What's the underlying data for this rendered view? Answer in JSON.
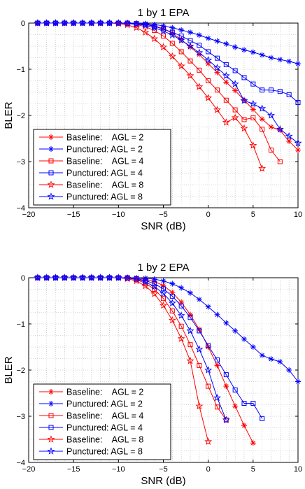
{
  "chart_data": [
    {
      "type": "line",
      "title": "1 by 1 EPA",
      "xlabel": "SNR (dB)",
      "ylabel": "BLER",
      "xlim": [
        -20,
        10
      ],
      "ylim": [
        -4,
        0
      ],
      "xticks": [
        "−20",
        "−15",
        "−10",
        "−5",
        "0",
        "5",
        "10"
      ],
      "yticks": [
        "0",
        "−1",
        "−2",
        "−3",
        "−4"
      ],
      "grid": true,
      "legend_position": "bottom-left",
      "colors": {
        "baseline": "#ff0000",
        "punctured": "#0000ff"
      },
      "series": [
        {
          "name": "Baseline:    AGL = 2",
          "color": "#ff0000",
          "marker": "asterisk",
          "x": [
            -19,
            -18,
            -17,
            -16,
            -15,
            -14,
            -13,
            -12,
            -11,
            -10,
            -9,
            -8,
            -7,
            -6,
            -5,
            -4,
            -3,
            -2,
            -1,
            0,
            1,
            2,
            3,
            4,
            5,
            6,
            7,
            8,
            9,
            10
          ],
          "y": [
            0,
            0,
            0,
            0,
            0,
            0,
            0,
            0,
            0,
            0,
            0,
            -0.01,
            -0.02,
            -0.06,
            -0.12,
            -0.22,
            -0.36,
            -0.52,
            -0.68,
            -0.88,
            -1.07,
            -1.28,
            -1.46,
            -1.67,
            -1.87,
            -2.08,
            -2.25,
            -2.32,
            -2.56,
            -2.75
          ]
        },
        {
          "name": "Punctured: AGL = 2",
          "color": "#0000ff",
          "marker": "asterisk",
          "x": [
            -19,
            -18,
            -17,
            -16,
            -15,
            -14,
            -13,
            -12,
            -11,
            -10,
            -9,
            -8,
            -7,
            -6,
            -5,
            -4,
            -3,
            -2,
            -1,
            0,
            1,
            2,
            3,
            4,
            5,
            6,
            7,
            8,
            9,
            10
          ],
          "y": [
            0,
            0,
            0,
            0,
            0,
            0,
            0,
            0,
            0,
            0,
            0,
            0,
            -0.01,
            -0.03,
            -0.06,
            -0.1,
            -0.15,
            -0.2,
            -0.26,
            -0.33,
            -0.39,
            -0.45,
            -0.52,
            -0.58,
            -0.63,
            -0.69,
            -0.75,
            -0.79,
            -0.83,
            -0.88
          ]
        },
        {
          "name": "Baseline:    AGL = 4",
          "color": "#ff0000",
          "marker": "square",
          "x": [
            -19,
            -18,
            -17,
            -16,
            -15,
            -14,
            -13,
            -12,
            -11,
            -10,
            -9,
            -8,
            -7,
            -6,
            -5,
            -4,
            -3,
            -2,
            -1,
            0,
            1,
            2,
            3,
            4,
            5,
            6,
            7,
            8
          ],
          "y": [
            0,
            0,
            0,
            0,
            0,
            0,
            0,
            0,
            0,
            0,
            -0.01,
            -0.03,
            -0.08,
            -0.16,
            -0.28,
            -0.44,
            -0.62,
            -0.82,
            -1.02,
            -1.25,
            -1.45,
            -1.67,
            -1.88,
            -2.09,
            -2.05,
            -2.3,
            -2.75,
            -3.0
          ]
        },
        {
          "name": "Punctured: AGL = 4",
          "color": "#0000ff",
          "marker": "square",
          "x": [
            -19,
            -18,
            -17,
            -16,
            -15,
            -14,
            -13,
            -12,
            -11,
            -10,
            -9,
            -8,
            -7,
            -6,
            -5,
            -4,
            -3,
            -2,
            -1,
            0,
            1,
            2,
            3,
            4,
            5,
            6,
            7,
            8,
            9,
            10
          ],
          "y": [
            0,
            0,
            0,
            0,
            0,
            0,
            0,
            0,
            0,
            0,
            0,
            -0.01,
            -0.03,
            -0.07,
            -0.13,
            -0.2,
            -0.28,
            -0.38,
            -0.48,
            -0.62,
            -0.76,
            -0.9,
            -1.03,
            -1.18,
            -1.32,
            -1.45,
            -1.45,
            -1.48,
            -1.55,
            -1.72
          ]
        },
        {
          "name": "Baseline:    AGL = 8",
          "color": "#ff0000",
          "marker": "star",
          "x": [
            -19,
            -18,
            -17,
            -16,
            -15,
            -14,
            -13,
            -12,
            -11,
            -10,
            -9,
            -8,
            -7,
            -6,
            -5,
            -4,
            -3,
            -2,
            -1,
            0,
            1,
            2,
            3,
            4,
            5,
            6
          ],
          "y": [
            0,
            0,
            0,
            0,
            0,
            0,
            0,
            0,
            0,
            -0.01,
            -0.04,
            -0.1,
            -0.2,
            -0.34,
            -0.52,
            -0.72,
            -0.93,
            -1.14,
            -1.38,
            -1.62,
            -1.88,
            -2.15,
            -2.05,
            -2.28,
            -2.65,
            -3.15
          ]
        },
        {
          "name": "Punctured: AGL = 8",
          "color": "#0000ff",
          "marker": "star",
          "x": [
            -19,
            -18,
            -17,
            -16,
            -15,
            -14,
            -13,
            -12,
            -11,
            -10,
            -9,
            -8,
            -7,
            -6,
            -5,
            -4,
            -3,
            -2,
            -1,
            0,
            1,
            2,
            3,
            4,
            5,
            6,
            7,
            8,
            9,
            10
          ],
          "y": [
            0,
            0,
            0,
            0,
            0,
            0,
            0,
            0,
            0,
            0,
            -0.01,
            -0.02,
            -0.05,
            -0.1,
            -0.17,
            -0.26,
            -0.37,
            -0.5,
            -0.64,
            -0.8,
            -0.97,
            -1.14,
            -1.32,
            -1.68,
            -1.75,
            -1.85,
            -2.0,
            -2.3,
            -2.45,
            -2.6
          ]
        }
      ]
    },
    {
      "type": "line",
      "title": "1 by 2 EPA",
      "xlabel": "SNR (dB)",
      "ylabel": "BLER",
      "xlim": [
        -20,
        10
      ],
      "ylim": [
        -4,
        0
      ],
      "xticks": [
        "−20",
        "−15",
        "−10",
        "−5",
        "0",
        "5",
        "10"
      ],
      "yticks": [
        "0",
        "−1",
        "−2",
        "−3",
        "−4"
      ],
      "grid": true,
      "legend_position": "bottom-left",
      "colors": {
        "baseline": "#ff0000",
        "punctured": "#0000ff"
      },
      "series": [
        {
          "name": "Baseline:    AGL = 2",
          "color": "#ff0000",
          "marker": "asterisk",
          "x": [
            -19,
            -18,
            -17,
            -16,
            -15,
            -14,
            -13,
            -12,
            -11,
            -10,
            -9,
            -8,
            -7,
            -6,
            -5,
            -4,
            -3,
            -2,
            -1,
            0,
            1,
            2,
            3,
            4,
            5
          ],
          "y": [
            0,
            0,
            0,
            0,
            0,
            0,
            0,
            0,
            0,
            0,
            0,
            -0.01,
            -0.03,
            -0.08,
            -0.17,
            -0.32,
            -0.53,
            -0.8,
            -1.12,
            -1.5,
            -1.9,
            -2.35,
            -2.78,
            -3.2,
            -3.58
          ]
        },
        {
          "name": "Punctured: AGL = 2",
          "color": "#0000ff",
          "marker": "asterisk",
          "x": [
            -19,
            -18,
            -17,
            -16,
            -15,
            -14,
            -13,
            -12,
            -11,
            -10,
            -9,
            -8,
            -7,
            -6,
            -5,
            -4,
            -3,
            -2,
            -1,
            0,
            1,
            2,
            3,
            4,
            5,
            6,
            7,
            8,
            9,
            10
          ],
          "y": [
            0,
            0,
            0,
            0,
            0,
            0,
            0,
            0,
            0,
            0,
            0,
            0,
            -0.01,
            -0.03,
            -0.07,
            -0.13,
            -0.22,
            -0.33,
            -0.47,
            -0.63,
            -0.8,
            -0.98,
            -1.15,
            -1.33,
            -1.5,
            -1.68,
            -1.76,
            -1.82,
            -2.0,
            -2.25
          ]
        },
        {
          "name": "Baseline:    AGL = 4",
          "color": "#ff0000",
          "marker": "square",
          "x": [
            -19,
            -18,
            -17,
            -16,
            -15,
            -14,
            -13,
            -12,
            -11,
            -10,
            -9,
            -8,
            -7,
            -6,
            -5,
            -4,
            -3,
            -2,
            -1,
            0,
            1,
            2
          ],
          "y": [
            0,
            0,
            0,
            0,
            0,
            0,
            0,
            0,
            0,
            0,
            -0.01,
            -0.04,
            -0.12,
            -0.25,
            -0.45,
            -0.72,
            -1.05,
            -1.45,
            -1.9,
            -2.35,
            -2.8,
            -3.08
          ]
        },
        {
          "name": "Punctured: AGL = 4",
          "color": "#0000ff",
          "marker": "square",
          "x": [
            -19,
            -18,
            -17,
            -16,
            -15,
            -14,
            -13,
            -12,
            -11,
            -10,
            -9,
            -8,
            -7,
            -6,
            -5,
            -4,
            -3,
            -2,
            -1,
            0,
            1,
            2,
            3,
            4,
            5,
            6
          ],
          "y": [
            0,
            0,
            0,
            0,
            0,
            0,
            0,
            0,
            0,
            0,
            0,
            -0.02,
            -0.06,
            -0.13,
            -0.24,
            -0.4,
            -0.61,
            -0.86,
            -1.15,
            -1.47,
            -1.78,
            -2.1,
            -2.43,
            -2.72,
            -2.72,
            -3.05
          ]
        },
        {
          "name": "Baseline:    AGL = 8",
          "color": "#ff0000",
          "marker": "star",
          "x": [
            -19,
            -18,
            -17,
            -16,
            -15,
            -14,
            -13,
            -12,
            -11,
            -10,
            -9,
            -8,
            -7,
            -6,
            -5,
            -4,
            -3,
            -2,
            -1,
            0
          ],
          "y": [
            0,
            0,
            0,
            0,
            0,
            0,
            0,
            0,
            0,
            0,
            -0.02,
            -0.07,
            -0.18,
            -0.35,
            -0.6,
            -0.92,
            -1.32,
            -1.8,
            -2.78,
            -3.55
          ]
        },
        {
          "name": "Punctured: AGL = 8",
          "color": "#0000ff",
          "marker": "star",
          "x": [
            -19,
            -18,
            -17,
            -16,
            -15,
            -14,
            -13,
            -12,
            -11,
            -10,
            -9,
            -8,
            -7,
            -6,
            -5,
            -4,
            -3,
            -2,
            -1,
            0,
            1,
            2
          ],
          "y": [
            0,
            0,
            0,
            0,
            0,
            0,
            0,
            0,
            0,
            0,
            -0.01,
            -0.03,
            -0.09,
            -0.19,
            -0.34,
            -0.55,
            -0.82,
            -1.15,
            -1.55,
            -2.0,
            -2.6,
            -3.08
          ]
        }
      ]
    }
  ]
}
